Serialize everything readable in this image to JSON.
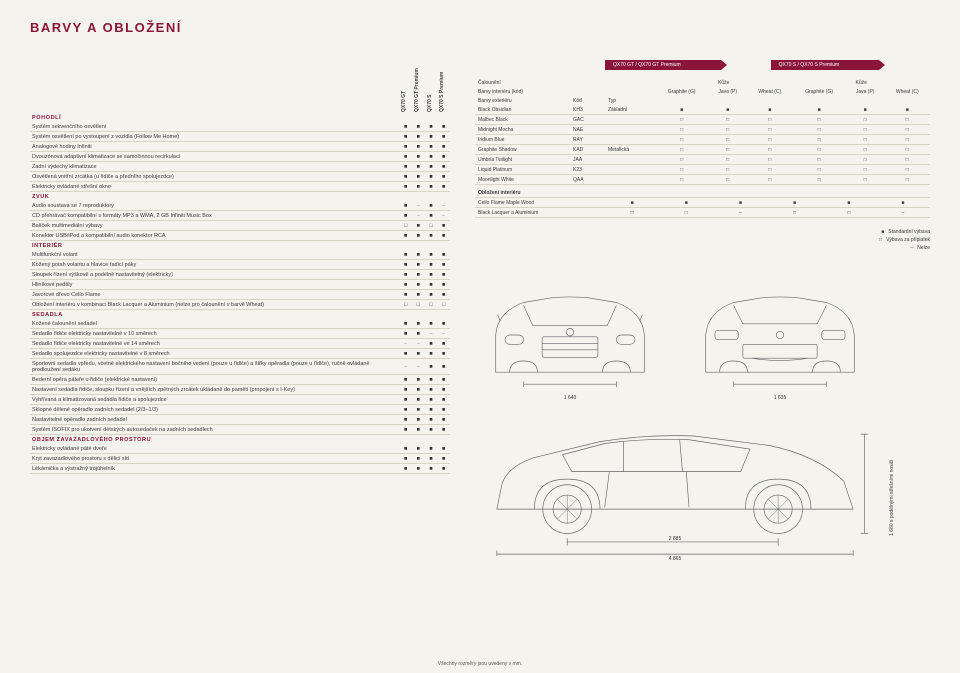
{
  "page_title": "BARVY A OBLOŽENÍ",
  "trim_columns": [
    "QX70 GT",
    "QX70 GT Premium",
    "QX70 S",
    "QX70 S Premium"
  ],
  "ribbons": [
    "QX70 GT / QX70 GT Premium",
    "QX70 S / QX70 S Premium"
  ],
  "colors": {
    "brand": "#8a1538",
    "bg": "#f5f3ed",
    "line": "#d8d4c8"
  },
  "marks": {
    "std": "■",
    "opt": "□",
    "none": "–"
  },
  "sections": [
    {
      "title": "POHODLÍ",
      "rows": [
        {
          "label": "Systém sekvenčního osvětlení",
          "v": [
            "■",
            "■",
            "■",
            "■"
          ]
        },
        {
          "label": "Systém osvětlení po vystoupení z vozidla (Follow Me Home)",
          "v": [
            "■",
            "■",
            "■",
            "■"
          ]
        },
        {
          "label": "Analogové hodiny Infiniti",
          "v": [
            "■",
            "■",
            "■",
            "■"
          ]
        },
        {
          "label": "Dvouzónová adaptivní klimatizace se samočinnou recirkulací",
          "v": [
            "■",
            "■",
            "■",
            "■"
          ]
        },
        {
          "label": "Zadní výdechy klimatizace",
          "v": [
            "■",
            "■",
            "■",
            "■"
          ]
        },
        {
          "label": "Osvětlená vnitřní zrcátka (u řidiče a předního spolujezdce)",
          "v": [
            "■",
            "■",
            "■",
            "■"
          ]
        },
        {
          "label": "Elektricky ovládané střešní okno",
          "v": [
            "■",
            "■",
            "■",
            "■"
          ]
        }
      ]
    },
    {
      "title": "ZVUK",
      "rows": [
        {
          "label": "Audio soustava se 7 reproduktory",
          "v": [
            "■",
            "–",
            "■",
            "–"
          ]
        },
        {
          "label": "CD přehrávač kompatibilní s formáty MP3 a WMA, 2 GB Infiniti Music Box",
          "v": [
            "■",
            "–",
            "■",
            "–"
          ]
        },
        {
          "label": "Balíček multimediální výbavy",
          "v": [
            "□",
            "■",
            "□",
            "■"
          ]
        },
        {
          "label": "Konektor USB/iPod a kompatibilní audio konektor RCA",
          "v": [
            "■",
            "■",
            "■",
            "■"
          ]
        }
      ]
    },
    {
      "title": "INTERIÉR",
      "rows": [
        {
          "label": "Multifunkční volant",
          "v": [
            "■",
            "■",
            "■",
            "■"
          ]
        },
        {
          "label": "Kožený potah volantu a hlavice řadicí páky",
          "v": [
            "■",
            "■",
            "■",
            "■"
          ]
        },
        {
          "label": "Sloupek řízení výškově a podélně nastavitelný (elektricky)",
          "v": [
            "■",
            "■",
            "■",
            "■"
          ]
        },
        {
          "label": "Hliníkové pedály",
          "v": [
            "■",
            "■",
            "■",
            "■"
          ]
        },
        {
          "label": "Javorové dřevo Cello Flame",
          "v": [
            "■",
            "■",
            "■",
            "■"
          ]
        },
        {
          "label": "Obložení interiéru v kombinaci Black Lacquer a Aluminium (nelze pro čalounění v barvě Wheat)",
          "v": [
            "□",
            "□",
            "□",
            "□"
          ]
        }
      ]
    },
    {
      "title": "SEDADLA",
      "rows": [
        {
          "label": "Kožené čalounění sedadel",
          "v": [
            "■",
            "■",
            "■",
            "■"
          ]
        },
        {
          "label": "Sedadlo řidiče elektricky nastavitelné v 10 směrech",
          "v": [
            "■",
            "■",
            "–",
            "–"
          ]
        },
        {
          "label": "Sedadlo řidiče elektricky nastavitelné ve 14 směrech",
          "v": [
            "–",
            "–",
            "■",
            "■"
          ]
        },
        {
          "label": "Sedadlo spolujezdce elektricky nastavitelné v 8 směrech",
          "v": [
            "■",
            "■",
            "■",
            "■"
          ]
        },
        {
          "label": "Sportovní sedadla vpředu, včetně elektrického nastavení bočního vedení (pouze u řidiče) a šířky opěradla (pouze u řidiče), ručně ovládaně prodloužení sedáku",
          "v": [
            "–",
            "–",
            "■",
            "■"
          ]
        },
        {
          "label": "Bederní opěra páteře u řidiče (elektrické nastavení)",
          "v": [
            "■",
            "■",
            "■",
            "■"
          ]
        },
        {
          "label": "Nastavení sedadla řidiče, sloupku řízení a vnějších zpětných zrcátek ukládaně do paměti (propojení s I-Key)",
          "v": [
            "■",
            "■",
            "■",
            "■"
          ]
        },
        {
          "label": "Vyhřívaná a klimatizovaná sedadla řidiče a spolujezdce",
          "v": [
            "■",
            "■",
            "■",
            "■"
          ]
        },
        {
          "label": "Sklopné dělené opěradlo zadních sedadel (2/3–1/3)",
          "v": [
            "■",
            "■",
            "■",
            "■"
          ]
        },
        {
          "label": "Nastavitelné opěradlo zadních sedadel",
          "v": [
            "■",
            "■",
            "■",
            "■"
          ]
        },
        {
          "label": "Systém ISOFIX pro ukotvení dětských autosedaček na zadních sedadlech",
          "v": [
            "■",
            "■",
            "■",
            "■"
          ]
        }
      ]
    },
    {
      "title": "OBJEM ZAVAZADLOVÉHO PROSTORU",
      "rows": [
        {
          "label": "Elektricky ovládané páté dveře",
          "v": [
            "■",
            "■",
            "■",
            "■"
          ]
        },
        {
          "label": "Kryt zavazadlového prostoru s dělicí sítí",
          "v": [
            "■",
            "■",
            "■",
            "■"
          ]
        },
        {
          "label": "Lékárnička a výstražný trojúhelník",
          "v": [
            "■",
            "■",
            "■",
            "■"
          ]
        }
      ]
    }
  ],
  "upholstery_head": {
    "row1": "Čalounění",
    "row2": "Barvy interiéru (kód)",
    "kuze": "Kůže",
    "cols": [
      "Graphite (G)",
      "Java (P)",
      "Wheat (C)",
      "Graphite (G)",
      "Java (P)",
      "Wheat (C)"
    ]
  },
  "ext_colors_head": {
    "title": "Barvy exteriéru",
    "code": "Kód",
    "type": "Typ"
  },
  "ext_colors": [
    {
      "name": "Black Obsidian",
      "code": "KH3",
      "type": "Základní",
      "v": [
        "■",
        "■",
        "■",
        "■",
        "■",
        "■"
      ]
    },
    {
      "name": "Malbec Black",
      "code": "GAC",
      "type": "",
      "v": [
        "□",
        "□",
        "□",
        "□",
        "□",
        "□"
      ]
    },
    {
      "name": "Midnight Mocha",
      "code": "NAE",
      "type": "",
      "v": [
        "□",
        "□",
        "□",
        "□",
        "□",
        "□"
      ]
    },
    {
      "name": "Iridium Blue",
      "code": "RAY",
      "type": "",
      "v": [
        "□",
        "□",
        "□",
        "□",
        "□",
        "□"
      ]
    },
    {
      "name": "Graphite Shadow",
      "code": "KAD",
      "type": "Metalická",
      "v": [
        "□",
        "□",
        "□",
        "□",
        "□",
        "□"
      ]
    },
    {
      "name": "Umbria Twilight",
      "code": "JAA",
      "type": "",
      "v": [
        "□",
        "□",
        "□",
        "□",
        "□",
        "□"
      ]
    },
    {
      "name": "Liquid Platinum",
      "code": "K23",
      "type": "",
      "v": [
        "□",
        "□",
        "□",
        "□",
        "□",
        "□"
      ]
    },
    {
      "name": "Moonlight White",
      "code": "QAA",
      "type": "",
      "v": [
        "□",
        "□",
        "□",
        "□",
        "□",
        "□"
      ]
    }
  ],
  "interior_trim_head": "Obložení interiéru",
  "interior_trim": [
    {
      "name": "Cello Flame Maple Wood",
      "v": [
        "■",
        "■",
        "■",
        "■",
        "■",
        "■"
      ]
    },
    {
      "name": "Black Lacquer a Aluminium",
      "v": [
        "□",
        "□",
        "–",
        "□",
        "□",
        "–"
      ]
    }
  ],
  "legend": [
    {
      "sym": "■",
      "txt": "Standardní výbava"
    },
    {
      "sym": "□",
      "txt": "Výbava za příplatek"
    },
    {
      "sym": "–",
      "txt": "Nelze"
    }
  ],
  "dims": {
    "track_front": "1 640",
    "track_rear": "1 635",
    "wheelbase": "2 885",
    "length": "4 865",
    "height": "1 680 s podélnými střešními nosiči"
  },
  "footer": "Všechny rozměry jsou uvedeny v mm."
}
